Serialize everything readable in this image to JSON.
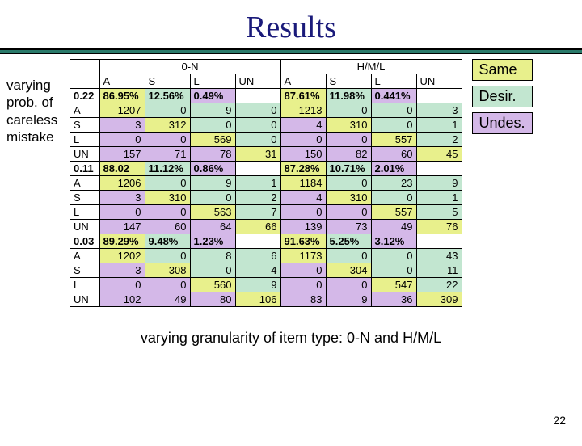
{
  "title": "Results",
  "side_label": "varying prob. of careless mistake",
  "legend": {
    "same": "Same",
    "desir": "Desir.",
    "undes": "Undes."
  },
  "bottom_caption": "varying granularity of item type: 0-N and H/M/L",
  "page_number": "22",
  "colors": {
    "title": "#1a1a7a",
    "rule": "#2a7a6a",
    "same_bg": "#e8f08c",
    "desir_bg": "#c2e6d0",
    "undes_bg": "#d4b8e8"
  },
  "table": {
    "super_headers": [
      "0-N",
      "H/M/L"
    ],
    "col_headers_left": [
      "A",
      "S",
      "L",
      "UN"
    ],
    "col_headers_right": [
      "A",
      "S",
      "L",
      "UN"
    ],
    "blocks": [
      {
        "prob": "0.22",
        "pct_left": [
          "86.95%",
          "12.56%",
          "0.49%",
          ""
        ],
        "pct_right": [
          "87.61%",
          "11.98%",
          "0.441%",
          ""
        ],
        "rows": [
          {
            "label": "A",
            "l": [
              "1207",
              "0",
              "9",
              "0"
            ],
            "r": [
              "1213",
              "0",
              "0",
              "3"
            ]
          },
          {
            "label": "S",
            "l": [
              "3",
              "312",
              "0",
              "0"
            ],
            "r": [
              "4",
              "310",
              "0",
              "1"
            ]
          },
          {
            "label": "L",
            "l": [
              "0",
              "0",
              "569",
              "0"
            ],
            "r": [
              "0",
              "0",
              "557",
              "2"
            ]
          },
          {
            "label": "UN",
            "l": [
              "157",
              "71",
              "78",
              "31"
            ],
            "r": [
              "150",
              "82",
              "60",
              "45"
            ]
          }
        ]
      },
      {
        "prob": "0.11",
        "pct_left": [
          "88.02",
          "11.12%",
          "0.86%",
          ""
        ],
        "pct_right": [
          "87.28%",
          "10.71%",
          "2.01%",
          ""
        ],
        "rows": [
          {
            "label": "A",
            "l": [
              "1206",
              "0",
              "9",
              "1"
            ],
            "r": [
              "1184",
              "0",
              "23",
              "9"
            ]
          },
          {
            "label": "S",
            "l": [
              "3",
              "310",
              "0",
              "2"
            ],
            "r": [
              "4",
              "310",
              "0",
              "1"
            ]
          },
          {
            "label": "L",
            "l": [
              "0",
              "0",
              "563",
              "7"
            ],
            "r": [
              "0",
              "0",
              "557",
              "5"
            ]
          },
          {
            "label": "UN",
            "l": [
              "147",
              "60",
              "64",
              "66"
            ],
            "r": [
              "139",
              "73",
              "49",
              "76"
            ]
          }
        ]
      },
      {
        "prob": "0.03",
        "pct_left": [
          "89.29%",
          "9.48%",
          "1.23%",
          ""
        ],
        "pct_right": [
          "91.63%",
          "5.25%",
          "3.12%",
          ""
        ],
        "rows": [
          {
            "label": "A",
            "l": [
              "1202",
              "0",
              "8",
              "6"
            ],
            "r": [
              "1173",
              "0",
              "0",
              "43"
            ]
          },
          {
            "label": "S",
            "l": [
              "3",
              "308",
              "0",
              "4"
            ],
            "r": [
              "0",
              "304",
              "0",
              "11"
            ]
          },
          {
            "label": "L",
            "l": [
              "0",
              "0",
              "560",
              "9"
            ],
            "r": [
              "0",
              "0",
              "547",
              "22"
            ]
          },
          {
            "label": "UN",
            "l": [
              "102",
              "49",
              "80",
              "106"
            ],
            "r": [
              "83",
              "9",
              "36",
              "309"
            ]
          }
        ]
      }
    ]
  }
}
